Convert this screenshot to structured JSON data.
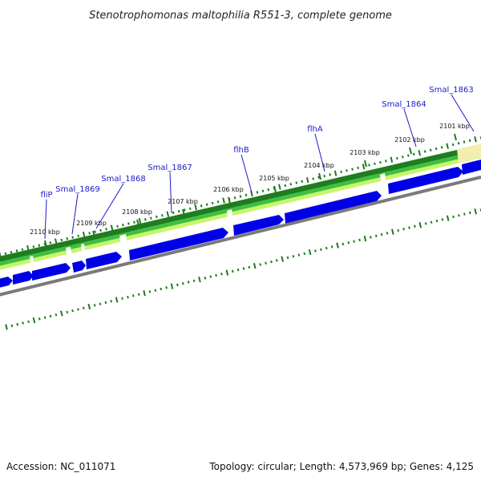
{
  "title": "Stenotrophomonas maltophilia R551-3, complete genome",
  "footer": {
    "accession": "Accession: NC_011071",
    "summary": "Topology: circular; Length: 4,573,969 bp; Genes: 4,125"
  },
  "colors": {
    "cds_forward": "#0000e6",
    "gene_dark": "#1e7d1e",
    "gene_mid": "#3fbf3f",
    "gene_light": "#c8f56a",
    "gene_pale": "#f3eeb0",
    "backbone": "#7a7a7a",
    "tick": "#1f7a1f",
    "label": "#1a1ac8"
  },
  "genes": [
    {
      "name": "fliP"
    },
    {
      "name": "Smal_1869"
    },
    {
      "name": "Smal_1868"
    },
    {
      "name": "Smal_1867"
    },
    {
      "name": "flhB"
    },
    {
      "name": "flhA"
    },
    {
      "name": "Smal_1864"
    },
    {
      "name": "Smal_1863"
    }
  ],
  "kbp_ticks": [
    {
      "label": "2110 kbp"
    },
    {
      "label": "2109 kbp"
    },
    {
      "label": "2108 kbp"
    },
    {
      "label": "2107 kbp"
    },
    {
      "label": "2106 kbp"
    },
    {
      "label": "2105 kbp"
    },
    {
      "label": "2104 kbp"
    },
    {
      "label": "2103 kbp"
    },
    {
      "label": "2102 kbp"
    },
    {
      "label": "2101 kbp"
    }
  ]
}
